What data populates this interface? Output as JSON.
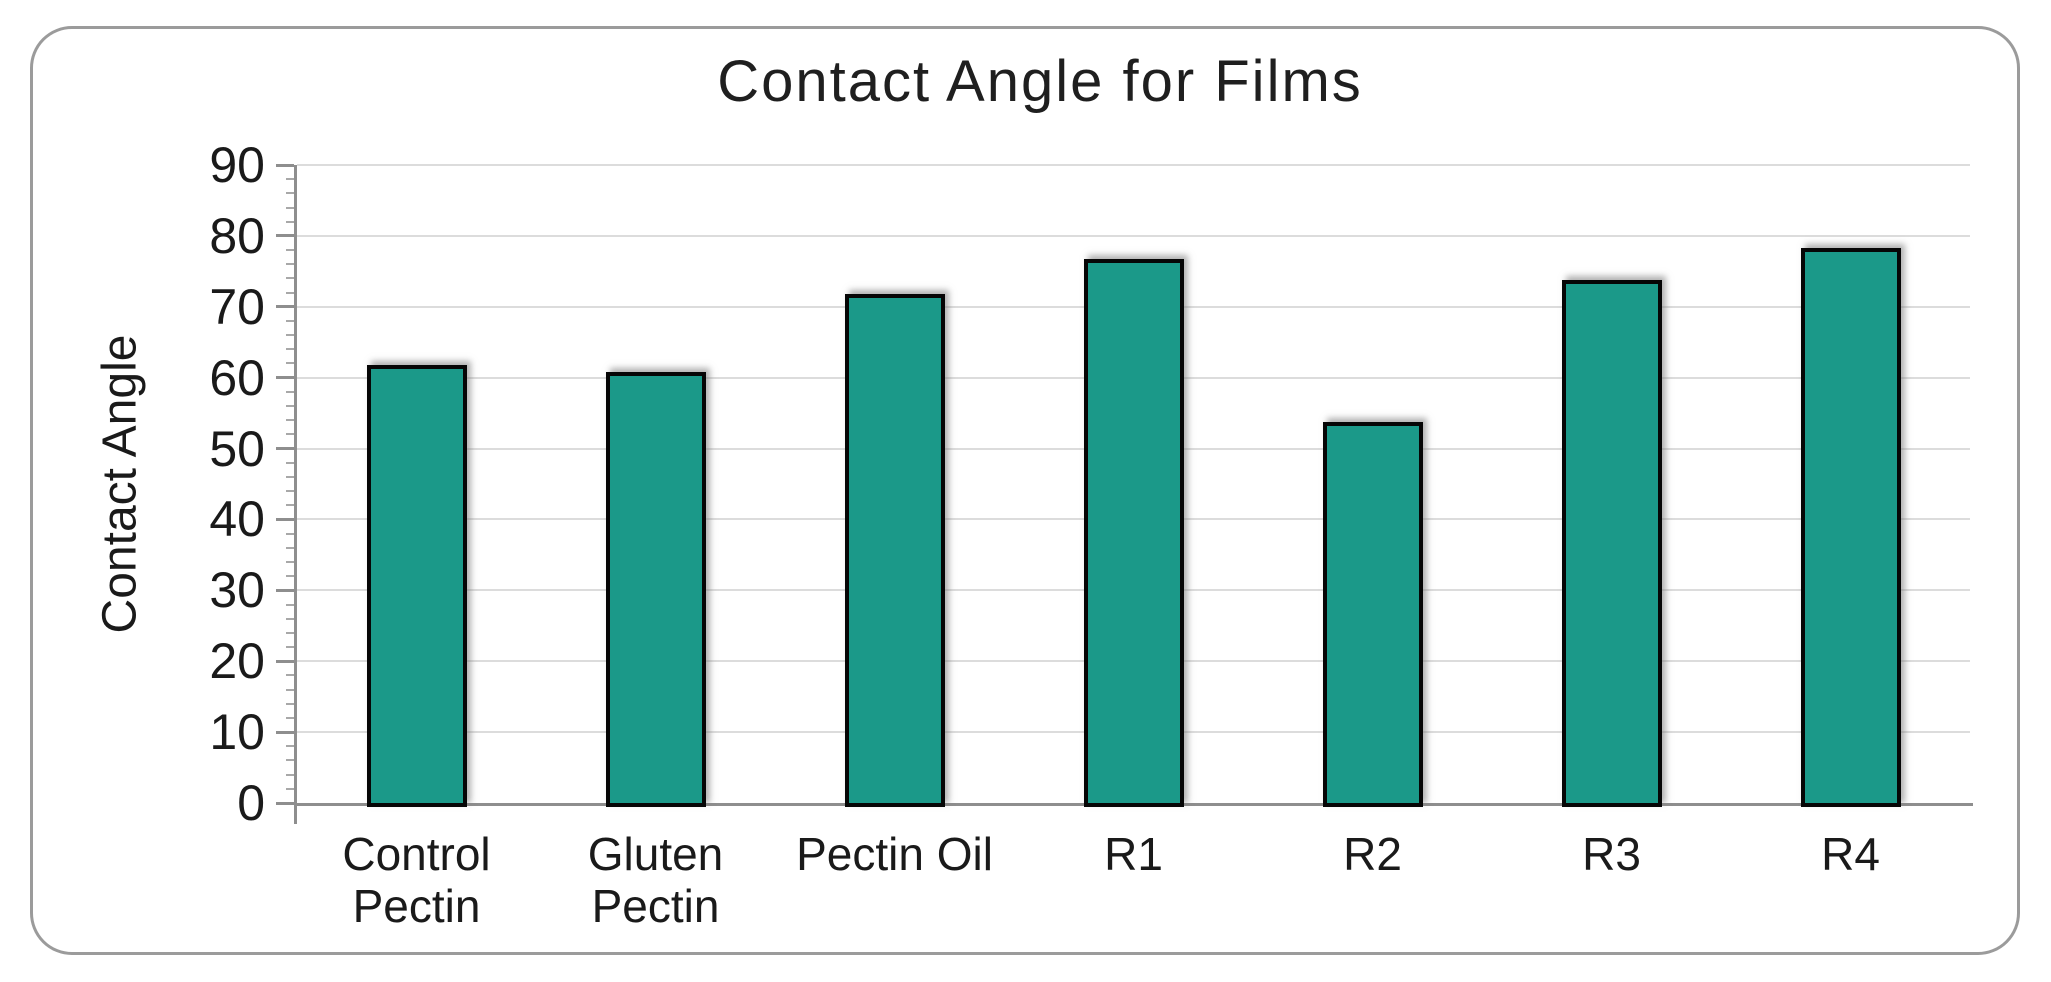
{
  "chart_data": {
    "type": "bar",
    "title": "Contact Angle for Films",
    "xlabel": "",
    "ylabel": "Contact Angle",
    "categories": [
      "Control Pectin",
      "Gluten Pectin",
      "Pectin Oil",
      "R1",
      "R2",
      "R3",
      "R4"
    ],
    "values": [
      61.5,
      60.5,
      71.5,
      76.5,
      53.5,
      73.5,
      78
    ],
    "ylim": [
      0,
      90
    ],
    "ytick_step": 10,
    "yminor_step": 2,
    "ytick_labels": [
      "0",
      "10",
      "20",
      "30",
      "40",
      "50",
      "60",
      "70",
      "80",
      "90"
    ],
    "grid": "horizontal-major",
    "legend": "none",
    "colors": {
      "bar_fill": "#1b9989",
      "bar_border": "#060606",
      "gridline": "#dcdcdc",
      "axis": "#8e8e8e",
      "text": "#1a1a1a",
      "frame_border": "#9b9b9b",
      "background": "#ffffff"
    }
  }
}
